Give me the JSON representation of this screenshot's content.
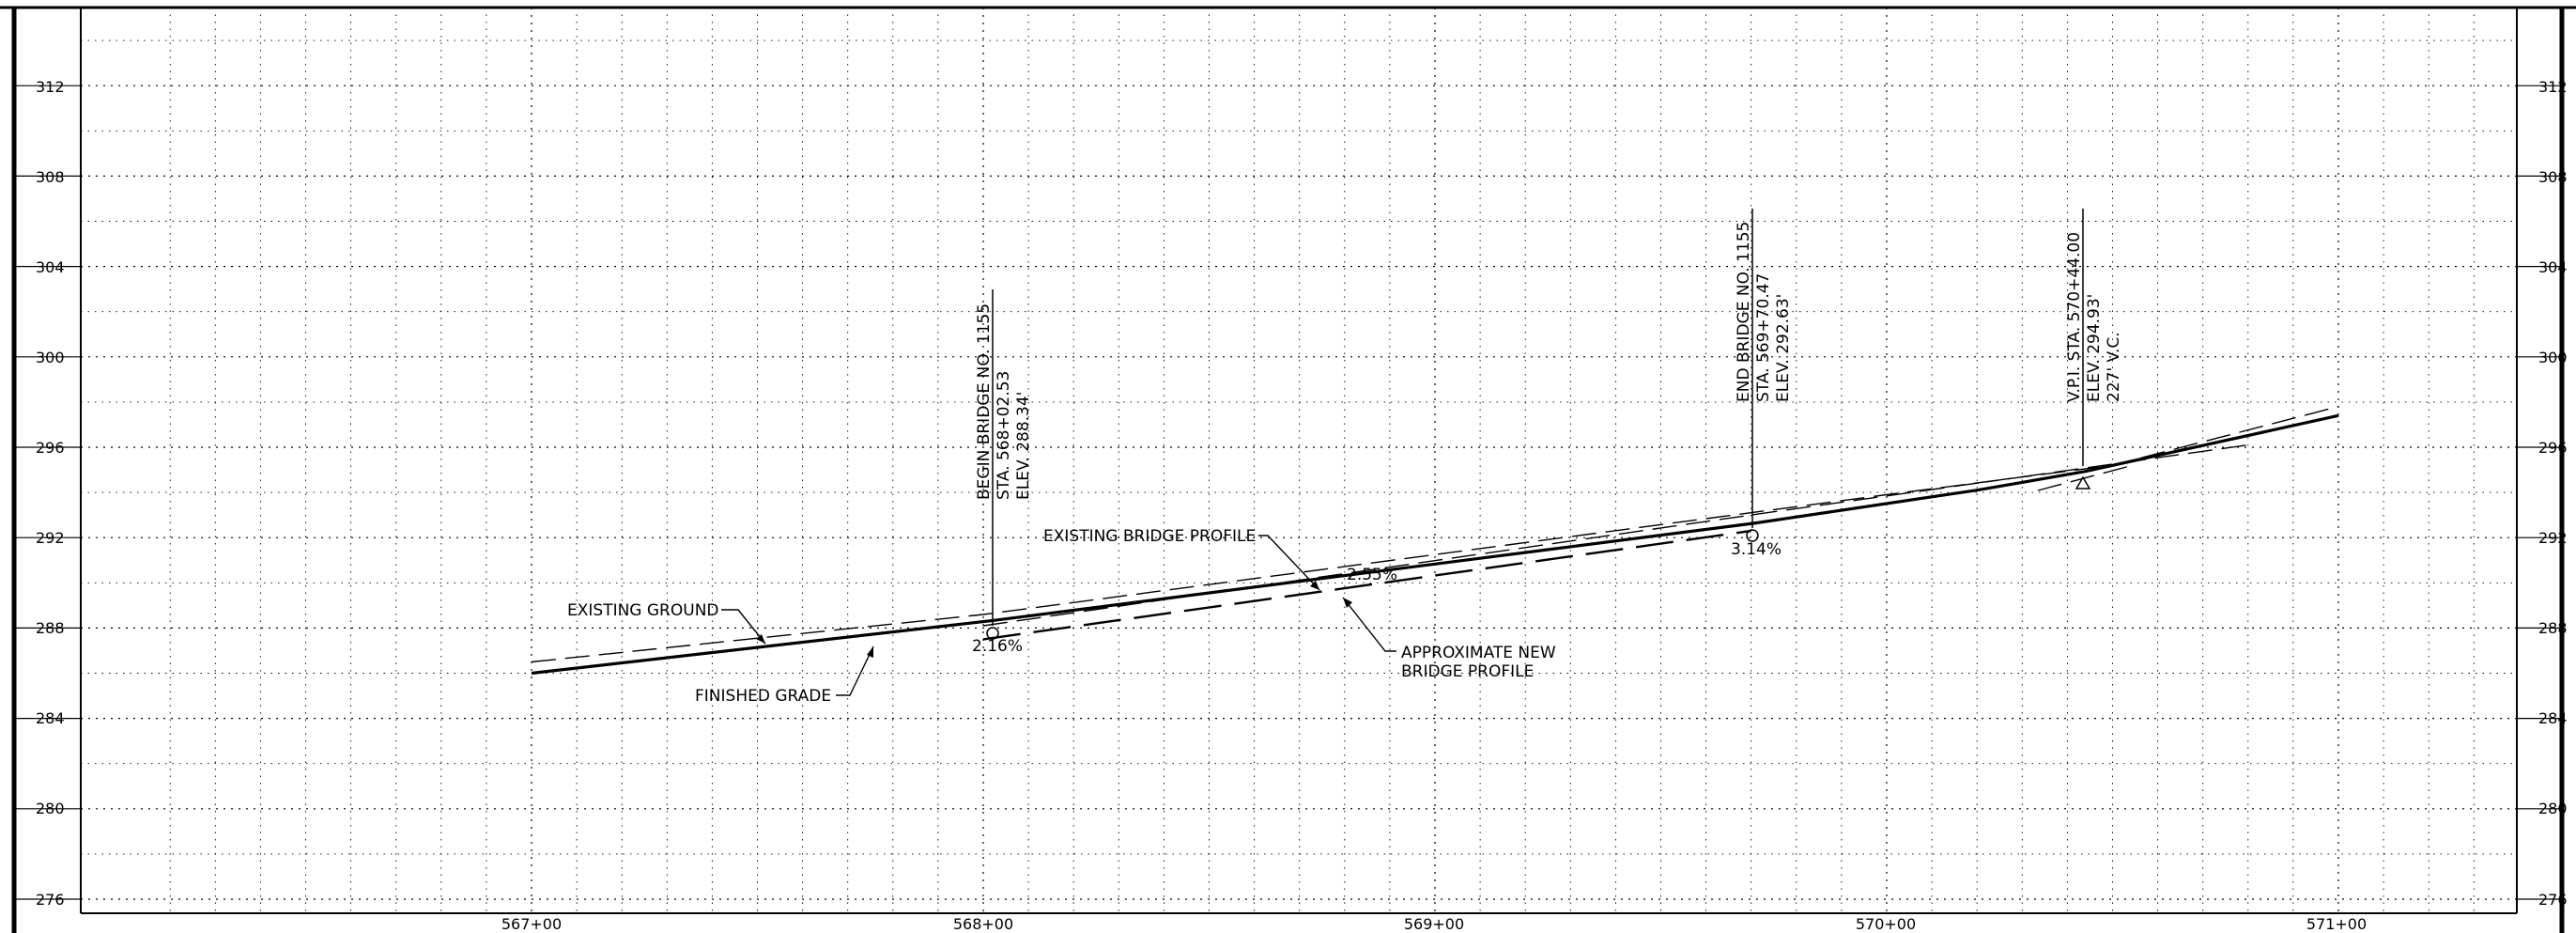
{
  "profile": {
    "elevation_ticks": [
      "312",
      "308",
      "304",
      "300",
      "296",
      "292",
      "288",
      "284",
      "280",
      "276"
    ],
    "station_ticks": [
      "567+00",
      "568+00",
      "569+00",
      "570+00",
      "571+00"
    ],
    "grid": true,
    "elevation_range": [
      275,
      314
    ],
    "station_range_ft": [
      56660,
      57290
    ],
    "finished_grade": [
      [
        56700,
        286.0
      ],
      [
        56802.53,
        288.34
      ],
      [
        56970.47,
        292.63
      ],
      [
        57020,
        294.1
      ],
      [
        57044,
        294.93
      ],
      [
        57100,
        297.4
      ]
    ],
    "existing_ground": [
      [
        56700,
        286.5
      ],
      [
        56800,
        288.6
      ],
      [
        57000,
        293.9
      ],
      [
        57050,
        295.2
      ],
      [
        57100,
        297.8
      ]
    ],
    "existing_bridge_profile": [
      [
        56800,
        288.1
      ],
      [
        56970,
        293.0
      ],
      [
        57080,
        296.1
      ]
    ],
    "approximate_new_bridge_profile": [
      [
        56800,
        287.5
      ],
      [
        56970,
        292.3
      ]
    ],
    "slope_labels": [
      "2.16%",
      "2.55%",
      "3.14%"
    ],
    "callouts": {
      "begin_bridge": {
        "lines": [
          "BEGIN BRIDGE NO. 1155",
          "STA. 568+02.53",
          "ELEV. 288.34'"
        ]
      },
      "end_bridge": {
        "lines": [
          "END BRIDGE NO. 1155",
          "STA. 569+70.47",
          "ELEV. 292.63'"
        ]
      },
      "vpi": {
        "lines": [
          "V.P.I. STA. 570+44.00",
          "ELEV. 294.93'",
          "227' V.C."
        ]
      }
    },
    "labels": {
      "existing_ground": "EXISTING GROUND",
      "finished_grade": "FINISHED GRADE",
      "existing_bridge_profile": "EXISTING BRIDGE PROFILE",
      "approximate_new_bridge_profile": [
        "APPROXIMATE NEW",
        "BRIDGE PROFILE"
      ]
    }
  }
}
